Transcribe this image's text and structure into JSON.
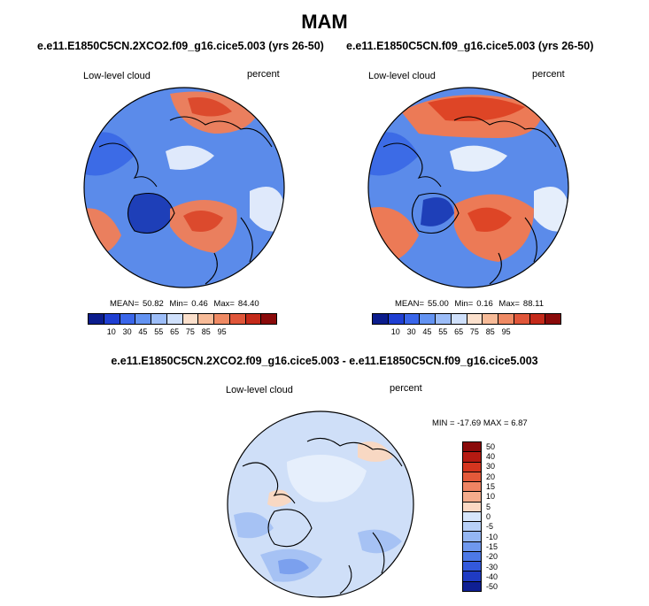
{
  "page_title": "MAM",
  "panels": [
    {
      "case": "e.e11.E1850C5CN.2XCO2.f09_g16.cice5.003 (yrs 26-50)",
      "left_label": "Low-level cloud",
      "right_label": "percent",
      "stats": {
        "mean_label": "MEAN=",
        "mean": "50.82",
        "min_label": "Min=",
        "min": "0.46",
        "max_label": "Max=",
        "max": "84.40"
      }
    },
    {
      "case": "e.e11.E1850C5CN.f09_g16.cice5.003 (yrs 26-50)",
      "left_label": "Low-level cloud",
      "right_label": "percent",
      "stats": {
        "mean_label": "MEAN=",
        "mean": "55.00",
        "min_label": "Min=",
        "min": "0.16",
        "max_label": "Max=",
        "max": "88.11"
      }
    },
    {
      "case": "e.e11.E1850C5CN.2XCO2.f09_g16.cice5.003 - e.e11.E1850C5CN.f09_g16.cice5.003",
      "left_label": "Low-level cloud",
      "right_label": "percent",
      "stats_text": "MIN = -17.69 MAX =  6.87"
    }
  ],
  "colorbar_abs": {
    "colors": [
      "#0b1c8c",
      "#1f3fd2",
      "#3a66ea",
      "#6393f2",
      "#9cbdf8",
      "#cfe0fb",
      "#fbe0cc",
      "#f7bb98",
      "#ef8a64",
      "#e0563a",
      "#c42a1a",
      "#8a0a0a"
    ],
    "tick_labels": [
      "10",
      "30",
      "45",
      "55",
      "65",
      "75",
      "85",
      "95"
    ]
  },
  "colorbar_diff": {
    "colors_top_to_bottom": [
      "#8a0a0a",
      "#b51a12",
      "#d4351f",
      "#e4593a",
      "#ef8463",
      "#f5ac8c",
      "#fbd8c3",
      "#d6e6fb",
      "#b7d0f8",
      "#94b6f3",
      "#6f98ee",
      "#4d79e7",
      "#3359dc",
      "#1f3bc3",
      "#0f1f93"
    ],
    "tick_labels_top_to_bottom": [
      "50",
      "40",
      "30",
      "20",
      "15",
      "10",
      "5",
      "0",
      "-5",
      "-10",
      "-15",
      "-20",
      "-30",
      "-40",
      "-50"
    ]
  },
  "map_colors": {
    "panel1": {
      "base": "#5b8bea",
      "ocean_north": "#3c6be6",
      "dark": "#1e3fb8",
      "high": "#ea7f5e",
      "peak": "#dc4a2d",
      "pale": "#dfe9fb"
    },
    "panel2": {
      "base": "#5b8bea",
      "ocean_north": "#3c6be6",
      "dark": "#1e3fb8",
      "high": "#ec7a56",
      "peak": "#de4526",
      "pale": "#e5eefb"
    },
    "diff": {
      "base": "#cfdff8",
      "light": "#e6effc",
      "mid": "#a6c2f4",
      "strong": "#7ba0ee",
      "warm": "#f8d8c3"
    }
  }
}
